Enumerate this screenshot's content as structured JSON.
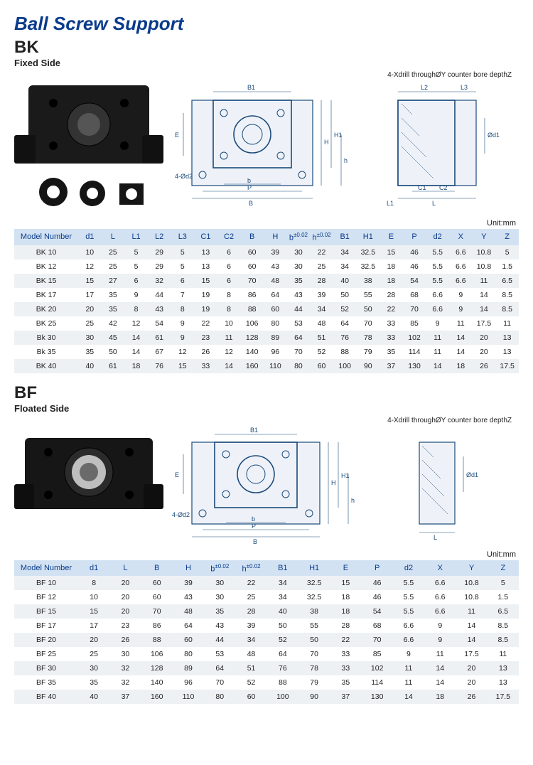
{
  "title": "Ball Screw Support",
  "unit_label": "Unit:mm",
  "drill_note": "4-Xdrill throughØY counter bore depthZ",
  "dim_labels": {
    "B1": "B1",
    "B": "B",
    "b": "b",
    "P": "P",
    "E": "E",
    "H": "H",
    "H1": "H1",
    "h": "h",
    "L": "L",
    "L1": "L1",
    "L2": "L2",
    "L3": "L3",
    "C1": "C1",
    "C2": "C2",
    "d1": "Ød1",
    "d2": "4-Ød2"
  },
  "bk": {
    "code": "BK",
    "sub": "Fixed Side",
    "columns": [
      "Model Number",
      "d1",
      "L",
      "L1",
      "L2",
      "L3",
      "C1",
      "C2",
      "B",
      "H",
      "b±0.02",
      "h±0.02",
      "B1",
      "H1",
      "E",
      "P",
      "d2",
      "X",
      "Y",
      "Z"
    ],
    "rows": [
      [
        "BK 10",
        "10",
        "25",
        "5",
        "29",
        "5",
        "13",
        "6",
        "60",
        "39",
        "30",
        "22",
        "34",
        "32.5",
        "15",
        "46",
        "5.5",
        "6.6",
        "10.8",
        "5"
      ],
      [
        "BK 12",
        "12",
        "25",
        "5",
        "29",
        "5",
        "13",
        "6",
        "60",
        "43",
        "30",
        "25",
        "34",
        "32.5",
        "18",
        "46",
        "5.5",
        "6.6",
        "10.8",
        "1.5"
      ],
      [
        "BK 15",
        "15",
        "27",
        "6",
        "32",
        "6",
        "15",
        "6",
        "70",
        "48",
        "35",
        "28",
        "40",
        "38",
        "18",
        "54",
        "5.5",
        "6.6",
        "11",
        "6.5"
      ],
      [
        "BK 17",
        "17",
        "35",
        "9",
        "44",
        "7",
        "19",
        "8",
        "86",
        "64",
        "43",
        "39",
        "50",
        "55",
        "28",
        "68",
        "6.6",
        "9",
        "14",
        "8.5"
      ],
      [
        "BK 20",
        "20",
        "35",
        "8",
        "43",
        "8",
        "19",
        "8",
        "88",
        "60",
        "44",
        "34",
        "52",
        "50",
        "22",
        "70",
        "6.6",
        "9",
        "14",
        "8.5"
      ],
      [
        "BK 25",
        "25",
        "42",
        "12",
        "54",
        "9",
        "22",
        "10",
        "106",
        "80",
        "53",
        "48",
        "64",
        "70",
        "33",
        "85",
        "9",
        "11",
        "17.5",
        "11"
      ],
      [
        "Bk 30",
        "30",
        "45",
        "14",
        "61",
        "9",
        "23",
        "11",
        "128",
        "89",
        "64",
        "51",
        "76",
        "78",
        "33",
        "102",
        "11",
        "14",
        "20",
        "13"
      ],
      [
        "Bk 35",
        "35",
        "50",
        "14",
        "67",
        "12",
        "26",
        "12",
        "140",
        "96",
        "70",
        "52",
        "88",
        "79",
        "35",
        "114",
        "11",
        "14",
        "20",
        "13"
      ],
      [
        "BK 40",
        "40",
        "61",
        "18",
        "76",
        "15",
        "33",
        "14",
        "160",
        "110",
        "80",
        "60",
        "100",
        "90",
        "37",
        "130",
        "14",
        "18",
        "26",
        "17.5"
      ]
    ]
  },
  "bf": {
    "code": "BF",
    "sub": "Floated Side",
    "columns": [
      "Model Number",
      "d1",
      "L",
      "B",
      "H",
      "b±0.02",
      "h±0.02",
      "B1",
      "H1",
      "E",
      "P",
      "d2",
      "X",
      "Y",
      "Z"
    ],
    "rows": [
      [
        "BF 10",
        "8",
        "20",
        "60",
        "39",
        "30",
        "22",
        "34",
        "32.5",
        "15",
        "46",
        "5.5",
        "6.6",
        "10.8",
        "5"
      ],
      [
        "BF 12",
        "10",
        "20",
        "60",
        "43",
        "30",
        "25",
        "34",
        "32.5",
        "18",
        "46",
        "5.5",
        "6.6",
        "10.8",
        "1.5"
      ],
      [
        "BF 15",
        "15",
        "20",
        "70",
        "48",
        "35",
        "28",
        "40",
        "38",
        "18",
        "54",
        "5.5",
        "6.6",
        "11",
        "6.5"
      ],
      [
        "BF 17",
        "17",
        "23",
        "86",
        "64",
        "43",
        "39",
        "50",
        "55",
        "28",
        "68",
        "6.6",
        "9",
        "14",
        "8.5"
      ],
      [
        "BF 20",
        "20",
        "26",
        "88",
        "60",
        "44",
        "34",
        "52",
        "50",
        "22",
        "70",
        "6.6",
        "9",
        "14",
        "8.5"
      ],
      [
        "BF 25",
        "25",
        "30",
        "106",
        "80",
        "53",
        "48",
        "64",
        "70",
        "33",
        "85",
        "9",
        "11",
        "17.5",
        "11"
      ],
      [
        "BF 30",
        "30",
        "32",
        "128",
        "89",
        "64",
        "51",
        "76",
        "78",
        "33",
        "102",
        "11",
        "14",
        "20",
        "13"
      ],
      [
        "BF 35",
        "35",
        "32",
        "140",
        "96",
        "70",
        "52",
        "88",
        "79",
        "35",
        "114",
        "11",
        "14",
        "20",
        "13"
      ],
      [
        "BF 40",
        "40",
        "37",
        "160",
        "110",
        "80",
        "60",
        "100",
        "90",
        "37",
        "130",
        "14",
        "18",
        "26",
        "17.5"
      ]
    ]
  },
  "colors": {
    "heading": "#0a3b8c",
    "th_bg": "#d2e2f2",
    "row_alt": "#eef1f4",
    "line": "#1a4a7a"
  }
}
